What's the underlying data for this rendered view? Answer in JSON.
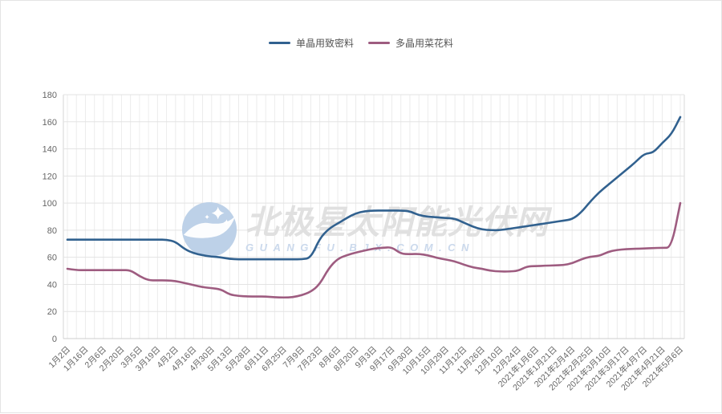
{
  "legend": [
    {
      "label": "单晶用致密料",
      "color": "#31618f"
    },
    {
      "label": "多晶用菜花料",
      "color": "#9e5c80"
    }
  ],
  "watermark": {
    "title": "北极星太阳能光伏网",
    "url": "GUANGFU.BJX.COM.CN"
  },
  "chart_data": {
    "type": "line",
    "title": "",
    "xlabel": "",
    "ylabel": "",
    "ylim": [
      0,
      180
    ],
    "ytick_step": 20,
    "grid": true,
    "legend_position": "top",
    "label_every": 2,
    "x_labels": [
      "1月2日",
      "1月16日",
      "2月6日",
      "2月20日",
      "3月5日",
      "3月19日",
      "4月2日",
      "4月16日",
      "4月30日",
      "5月13日",
      "5月28日",
      "6月11日",
      "6月25日",
      "7月9日",
      "7月23日",
      "8月6日",
      "8月20日",
      "9月3日",
      "9月17日",
      "9月30日",
      "10月15日",
      "10月29日",
      "11月12日",
      "11月26日",
      "12月10日",
      "12月24日",
      "2021年1月6日",
      "2021年1月21日",
      "2021年2月4日",
      "2021年2月25日",
      "2021年3月10日",
      "2021年3月17日",
      "2021年4月7日",
      "2021年4月21日",
      "2021年5月6日"
    ],
    "series": [
      {
        "name": "单晶用致密料",
        "key": "mono-dense",
        "color": "#31618f",
        "values": [
          73,
          73,
          73,
          73,
          73,
          73,
          73,
          73,
          73,
          73,
          73,
          73,
          71.5,
          66,
          63,
          61.5,
          60.5,
          60,
          58.8,
          58.5,
          58.5,
          58.5,
          58.5,
          58.5,
          58.5,
          58.5,
          58.5,
          59.5,
          74,
          81,
          85,
          89,
          92.5,
          94,
          94.5,
          94.5,
          94.5,
          94.5,
          94,
          91,
          90,
          89.5,
          89,
          88.5,
          85.5,
          82.5,
          80.5,
          80,
          80,
          81,
          82,
          83,
          84,
          85,
          86,
          87,
          88,
          93,
          101,
          108,
          113.5,
          119,
          124.5,
          130,
          136.5,
          137,
          144.5,
          150.5,
          163.5
        ]
      },
      {
        "name": "多晶用菜花料",
        "key": "multi-cauliflower",
        "color": "#9e5c80",
        "values": [
          51.5,
          50.5,
          50.5,
          50.5,
          50.5,
          50.5,
          50.5,
          50.5,
          46,
          43,
          43,
          43,
          42.5,
          41,
          39.5,
          38,
          37.2,
          36.5,
          32.5,
          31.5,
          31,
          31,
          31,
          30.5,
          30.3,
          30.5,
          32,
          34.5,
          40,
          52,
          59,
          61.5,
          63.5,
          65,
          66.5,
          67,
          67.5,
          62.5,
          62.3,
          62.5,
          61.5,
          59.5,
          58.3,
          57,
          54.5,
          52.5,
          51.5,
          50,
          49.5,
          49.5,
          50,
          53.3,
          53.5,
          53.8,
          54,
          54.2,
          55.5,
          58.5,
          60.5,
          61,
          64,
          65.5,
          66,
          66.3,
          66.5,
          66.8,
          67,
          67,
          100
        ]
      }
    ]
  }
}
